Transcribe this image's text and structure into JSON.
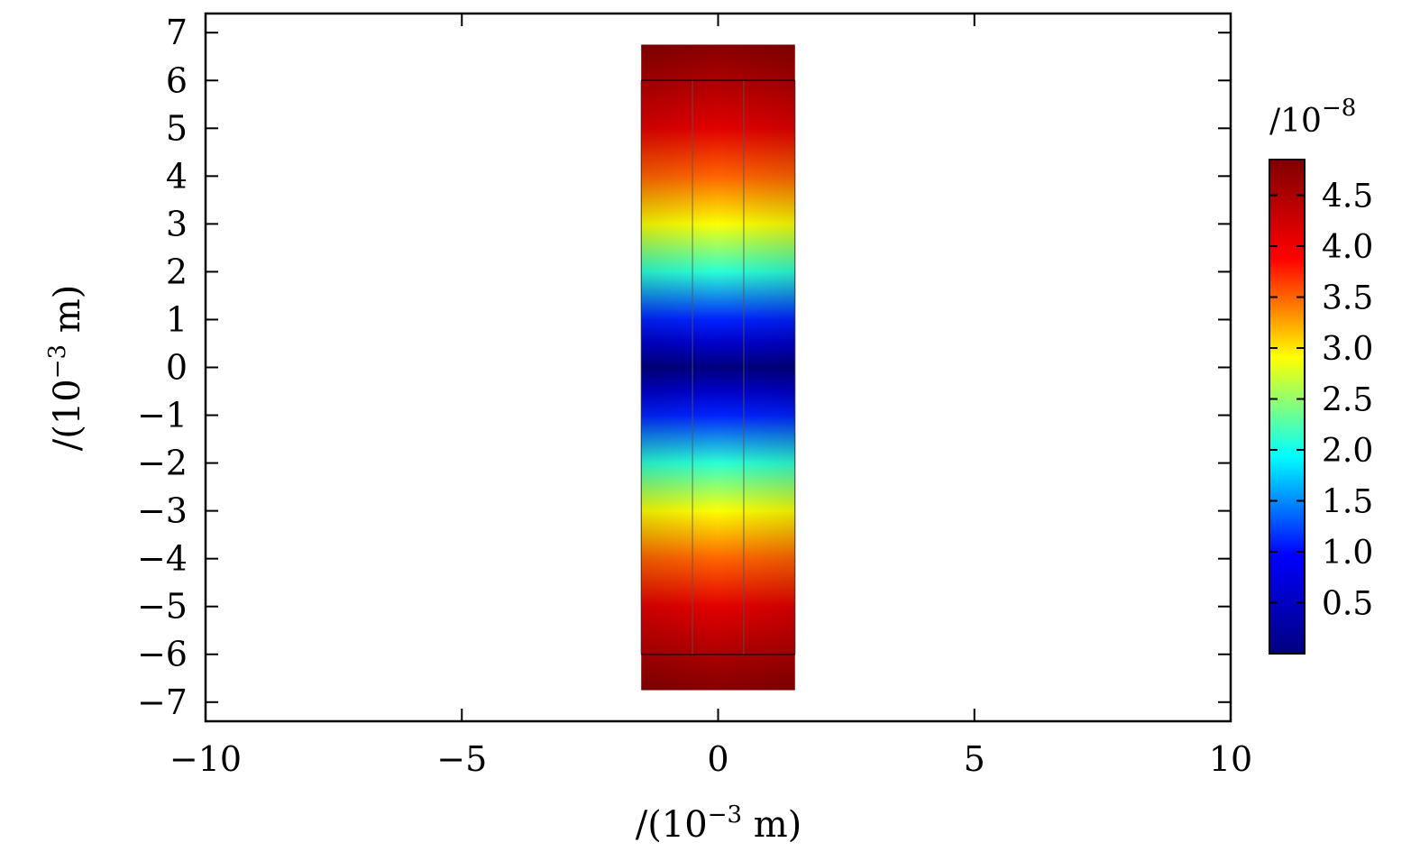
{
  "chart_data": {
    "type": "heatmap",
    "title": "",
    "xlabel_parts": [
      "/(10",
      "−3",
      " m)"
    ],
    "ylabel_parts": [
      "/(10",
      "−3",
      " m)"
    ],
    "xlim": [
      -10,
      10
    ],
    "ylim": [
      -7.4,
      7.4
    ],
    "x_ticks": [
      {
        "value": -10,
        "label": "−10"
      },
      {
        "value": -5,
        "label": "−5"
      },
      {
        "value": 0,
        "label": "0"
      },
      {
        "value": 5,
        "label": "5"
      },
      {
        "value": 10,
        "label": "10"
      }
    ],
    "y_ticks": [
      {
        "value": 7,
        "label": "7"
      },
      {
        "value": 6,
        "label": "6"
      },
      {
        "value": 5,
        "label": "5"
      },
      {
        "value": 4,
        "label": "4"
      },
      {
        "value": 3,
        "label": "3"
      },
      {
        "value": 2,
        "label": "2"
      },
      {
        "value": 1,
        "label": "1"
      },
      {
        "value": 0,
        "label": "0"
      },
      {
        "value": -1,
        "label": "−1"
      },
      {
        "value": -2,
        "label": "−2"
      },
      {
        "value": -3,
        "label": "−3"
      },
      {
        "value": -4,
        "label": "−4"
      },
      {
        "value": -5,
        "label": "−5"
      },
      {
        "value": -6,
        "label": "−6"
      },
      {
        "value": -7,
        "label": "−7"
      }
    ],
    "field": {
      "x_range": [
        -1.5,
        1.5
      ],
      "y_range": [
        -6.75,
        6.75
      ],
      "inner_box_y": [
        -6,
        6
      ],
      "divider_x": [
        -0.5,
        0.5
      ],
      "profile": [
        {
          "y": 6.75,
          "value": 4.8
        },
        {
          "y": 6.0,
          "value": 4.5
        },
        {
          "y": 5.0,
          "value": 4.1
        },
        {
          "y": 4.0,
          "value": 3.5
        },
        {
          "y": 3.0,
          "value": 2.9
        },
        {
          "y": 2.0,
          "value": 2.1
        },
        {
          "y": 1.0,
          "value": 1.1
        },
        {
          "y": 0.5,
          "value": 0.55
        },
        {
          "y": 0.0,
          "value": 0.0
        },
        {
          "y": -0.5,
          "value": 0.55
        },
        {
          "y": -1.0,
          "value": 1.1
        },
        {
          "y": -2.0,
          "value": 2.1
        },
        {
          "y": -3.0,
          "value": 2.9
        },
        {
          "y": -4.0,
          "value": 3.5
        },
        {
          "y": -5.0,
          "value": 4.1
        },
        {
          "y": -6.0,
          "value": 4.5
        },
        {
          "y": -6.75,
          "value": 4.8
        }
      ]
    },
    "colorbar": {
      "title_parts": [
        "/10",
        "−8"
      ],
      "range": [
        0.0,
        4.85
      ],
      "colormap": [
        "#00007f",
        "#0000ff",
        "#00ffff",
        "#ffff00",
        "#ff0000",
        "#7f0000"
      ],
      "ticks": [
        {
          "value": 4.5,
          "label": "4.5"
        },
        {
          "value": 4.0,
          "label": "4.0"
        },
        {
          "value": 3.5,
          "label": "3.5"
        },
        {
          "value": 3.0,
          "label": "3.0"
        },
        {
          "value": 2.5,
          "label": "2.5"
        },
        {
          "value": 2.0,
          "label": "2.0"
        },
        {
          "value": 1.5,
          "label": "1.5"
        },
        {
          "value": 1.0,
          "label": "1.0"
        },
        {
          "value": 0.5,
          "label": "0.5"
        }
      ]
    }
  }
}
